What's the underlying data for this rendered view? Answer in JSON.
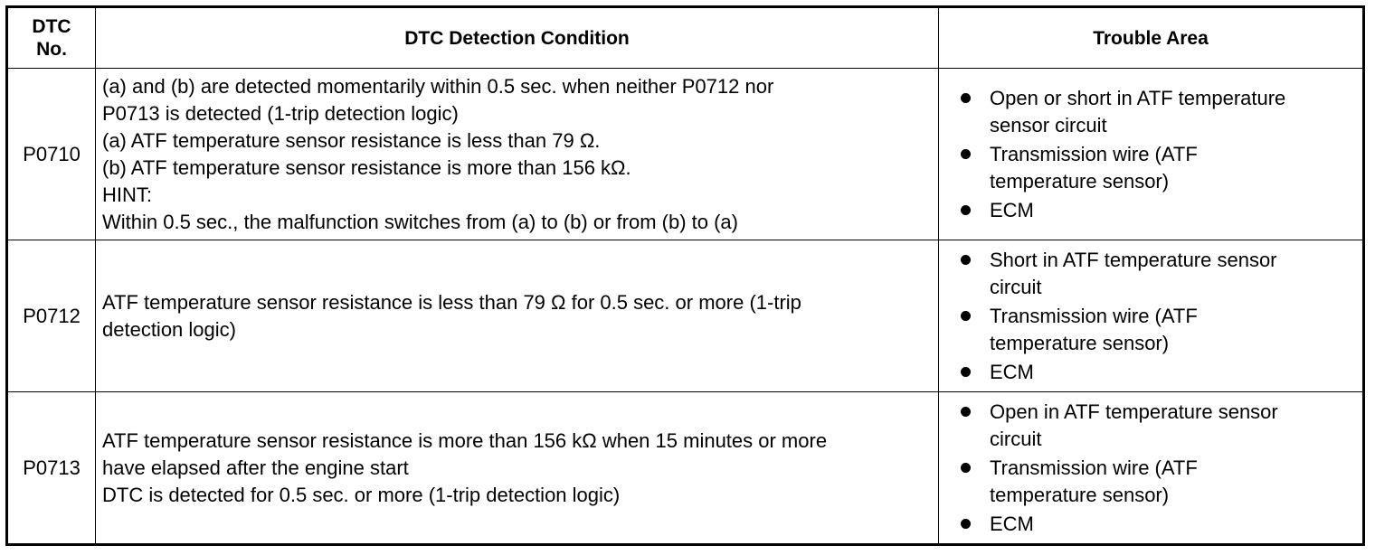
{
  "table": {
    "headers": {
      "dtc_no_line1": "DTC",
      "dtc_no_line2": "No.",
      "condition": "DTC Detection Condition",
      "trouble_area": "Trouble Area"
    },
    "rows": [
      {
        "code": "P0710",
        "condition_lines": [
          "(a) and (b) are detected momentarily within 0.5 sec. when neither P0712 nor",
          "P0713 is detected (1-trip detection logic)",
          "(a) ATF temperature sensor resistance is less than 79 Ω.",
          "(b) ATF temperature sensor resistance is more than 156 kΩ.",
          "HINT:",
          "Within 0.5 sec., the malfunction switches from (a) to (b) or from (b) to (a)"
        ],
        "trouble_areas": [
          {
            "line1": "Open or short in ATF temperature",
            "line2": "sensor circuit"
          },
          {
            "line1": "Transmission wire (ATF",
            "line2": "temperature sensor)"
          },
          {
            "line1": "ECM",
            "line2": ""
          }
        ]
      },
      {
        "code": "P0712",
        "condition_lines": [
          "ATF temperature sensor resistance is less than 79 Ω for 0.5 sec. or more (1-trip",
          "detection logic)"
        ],
        "trouble_areas": [
          {
            "line1": "Short in ATF temperature sensor",
            "line2": "circuit"
          },
          {
            "line1": "Transmission wire (ATF",
            "line2": "temperature sensor)"
          },
          {
            "line1": "ECM",
            "line2": ""
          }
        ]
      },
      {
        "code": "P0713",
        "condition_lines": [
          "ATF temperature sensor resistance is more than 156 kΩ when 15 minutes or more",
          "have elapsed after the engine start",
          "DTC is detected for 0.5 sec. or more (1-trip detection logic)"
        ],
        "trouble_areas": [
          {
            "line1": "Open in ATF temperature sensor",
            "line2": "circuit"
          },
          {
            "line1": "Transmission wire (ATF",
            "line2": "temperature sensor)"
          },
          {
            "line1": "ECM",
            "line2": ""
          }
        ]
      }
    ]
  },
  "icons": {
    "bullet": "filled-circle-bullet-icon"
  }
}
